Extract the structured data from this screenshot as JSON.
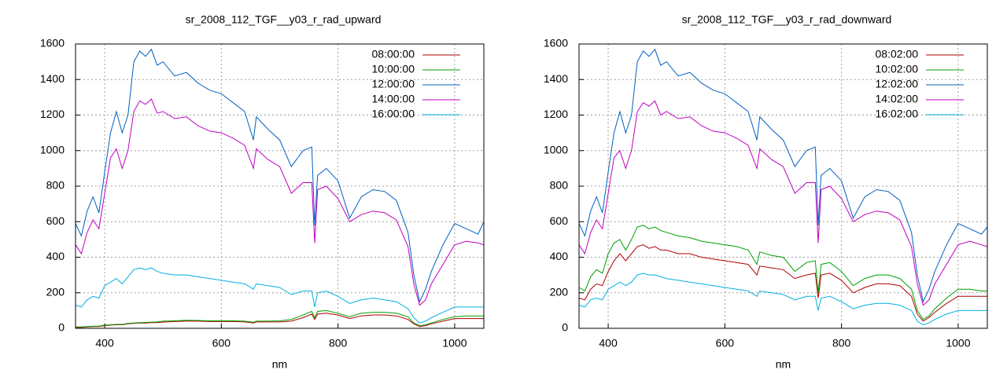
{
  "chart_data": [
    {
      "type": "line",
      "title": "sr_2008_112_TGF__y03_r_rad_upward",
      "x_label": "nm",
      "x": [
        350,
        360,
        370,
        380,
        390,
        400,
        410,
        420,
        430,
        440,
        450,
        460,
        470,
        480,
        490,
        500,
        520,
        540,
        560,
        580,
        600,
        620,
        640,
        655,
        660,
        680,
        700,
        720,
        740,
        755,
        760,
        765,
        780,
        800,
        820,
        840,
        860,
        880,
        900,
        920,
        930,
        940,
        950,
        960,
        980,
        1000,
        1020,
        1040,
        1050
      ],
      "xlim": [
        350,
        1050
      ],
      "xticks": [
        400,
        600,
        800,
        1000
      ],
      "ylim": [
        0,
        1600
      ],
      "yticks": [
        0,
        200,
        400,
        600,
        800,
        1000,
        1200,
        1400,
        1600
      ],
      "grid": true,
      "legend": "upper right",
      "series": [
        {
          "name": "08:00:00",
          "color": "#b00000",
          "values": [
            5,
            5,
            8,
            10,
            10,
            15,
            18,
            20,
            20,
            25,
            28,
            30,
            30,
            32,
            32,
            35,
            38,
            40,
            40,
            38,
            38,
            38,
            36,
            30,
            36,
            36,
            36,
            40,
            60,
            80,
            50,
            80,
            85,
            75,
            55,
            70,
            75,
            75,
            70,
            50,
            25,
            10,
            15,
            25,
            40,
            55,
            55,
            55,
            55
          ]
        },
        {
          "name": "10:00:00",
          "color": "#00a000",
          "values": [
            8,
            8,
            10,
            12,
            12,
            18,
            20,
            22,
            22,
            28,
            30,
            32,
            33,
            35,
            36,
            40,
            42,
            45,
            44,
            42,
            42,
            42,
            40,
            34,
            40,
            40,
            42,
            50,
            75,
            95,
            60,
            95,
            100,
            85,
            65,
            85,
            90,
            90,
            85,
            65,
            30,
            15,
            20,
            30,
            50,
            65,
            70,
            70,
            70
          ]
        },
        {
          "name": "12:00:00",
          "color": "#0060c0",
          "values": [
            590,
            520,
            660,
            740,
            650,
            880,
            1100,
            1220,
            1100,
            1200,
            1500,
            1560,
            1530,
            1570,
            1480,
            1500,
            1420,
            1440,
            1380,
            1340,
            1320,
            1270,
            1220,
            1060,
            1190,
            1120,
            1060,
            910,
            1000,
            1020,
            580,
            860,
            900,
            830,
            620,
            740,
            780,
            770,
            720,
            540,
            300,
            150,
            220,
            320,
            470,
            590,
            560,
            530,
            600
          ]
        },
        {
          "name": "14:00:00",
          "color": "#c000c0",
          "values": [
            470,
            420,
            540,
            610,
            560,
            760,
            960,
            1010,
            900,
            1000,
            1220,
            1280,
            1260,
            1290,
            1210,
            1220,
            1180,
            1190,
            1140,
            1110,
            1100,
            1070,
            1030,
            900,
            1010,
            950,
            910,
            760,
            820,
            820,
            480,
            780,
            800,
            730,
            600,
            640,
            660,
            650,
            610,
            460,
            250,
            130,
            160,
            250,
            360,
            470,
            490,
            480,
            470
          ]
        },
        {
          "name": "16:00:00",
          "color": "#00b0e0",
          "values": [
            130,
            120,
            160,
            180,
            170,
            240,
            260,
            280,
            250,
            290,
            330,
            340,
            330,
            340,
            320,
            310,
            300,
            300,
            290,
            280,
            270,
            260,
            250,
            220,
            250,
            240,
            230,
            190,
            210,
            210,
            120,
            200,
            210,
            180,
            140,
            160,
            170,
            160,
            150,
            110,
            60,
            30,
            40,
            60,
            90,
            120,
            120,
            120,
            120
          ]
        }
      ]
    },
    {
      "type": "line",
      "title": "sr_2008_112_TGF__y03_r_rad_downward",
      "x_label": "nm",
      "x": [
        350,
        360,
        370,
        380,
        390,
        400,
        410,
        420,
        430,
        440,
        450,
        460,
        470,
        480,
        490,
        500,
        520,
        540,
        560,
        580,
        600,
        620,
        640,
        655,
        660,
        680,
        700,
        720,
        740,
        755,
        760,
        765,
        780,
        800,
        820,
        840,
        860,
        880,
        900,
        920,
        930,
        940,
        950,
        960,
        980,
        1000,
        1020,
        1040,
        1050
      ],
      "xlim": [
        350,
        1050
      ],
      "xticks": [
        400,
        600,
        800,
        1000
      ],
      "ylim": [
        0,
        1600
      ],
      "yticks": [
        0,
        200,
        400,
        600,
        800,
        1000,
        1200,
        1400,
        1600
      ],
      "grid": true,
      "legend": "upper right",
      "series": [
        {
          "name": "08:02:00",
          "color": "#b00000",
          "values": [
            170,
            160,
            220,
            250,
            240,
            320,
            380,
            420,
            380,
            420,
            460,
            470,
            450,
            460,
            440,
            440,
            420,
            420,
            400,
            390,
            380,
            370,
            360,
            300,
            350,
            340,
            330,
            280,
            300,
            310,
            170,
            300,
            310,
            270,
            200,
            230,
            250,
            250,
            240,
            180,
            80,
            40,
            60,
            90,
            140,
            180,
            180,
            180,
            180
          ]
        },
        {
          "name": "10:02:00",
          "color": "#00a000",
          "values": [
            230,
            210,
            290,
            330,
            310,
            420,
            480,
            500,
            440,
            500,
            570,
            580,
            560,
            570,
            550,
            540,
            520,
            510,
            490,
            480,
            470,
            460,
            440,
            360,
            430,
            410,
            400,
            320,
            370,
            380,
            200,
            360,
            370,
            320,
            240,
            280,
            300,
            300,
            280,
            220,
            100,
            50,
            70,
            110,
            170,
            220,
            220,
            210,
            210
          ]
        },
        {
          "name": "12:02:00",
          "color": "#0060c0",
          "values": [
            590,
            520,
            660,
            740,
            650,
            880,
            1100,
            1220,
            1100,
            1200,
            1500,
            1560,
            1530,
            1570,
            1480,
            1500,
            1420,
            1440,
            1380,
            1340,
            1320,
            1270,
            1220,
            1060,
            1190,
            1120,
            1060,
            910,
            1000,
            1020,
            580,
            860,
            900,
            830,
            620,
            740,
            780,
            770,
            720,
            540,
            300,
            150,
            220,
            320,
            470,
            590,
            560,
            530,
            570
          ]
        },
        {
          "name": "14:02:00",
          "color": "#c000c0",
          "values": [
            470,
            420,
            540,
            610,
            560,
            760,
            960,
            1000,
            900,
            1000,
            1220,
            1270,
            1250,
            1280,
            1200,
            1220,
            1180,
            1190,
            1140,
            1110,
            1100,
            1070,
            1030,
            900,
            1010,
            950,
            910,
            760,
            820,
            820,
            480,
            780,
            800,
            730,
            600,
            640,
            660,
            650,
            610,
            460,
            250,
            130,
            160,
            250,
            360,
            470,
            490,
            470,
            460
          ]
        },
        {
          "name": "16:02:00",
          "color": "#00b0e0",
          "values": [
            130,
            120,
            160,
            170,
            160,
            220,
            240,
            260,
            240,
            260,
            300,
            310,
            300,
            300,
            290,
            280,
            270,
            260,
            250,
            240,
            230,
            220,
            210,
            180,
            210,
            200,
            190,
            160,
            180,
            180,
            100,
            170,
            180,
            150,
            110,
            130,
            140,
            140,
            130,
            100,
            40,
            20,
            30,
            50,
            80,
            100,
            100,
            100,
            100
          ]
        }
      ]
    }
  ]
}
